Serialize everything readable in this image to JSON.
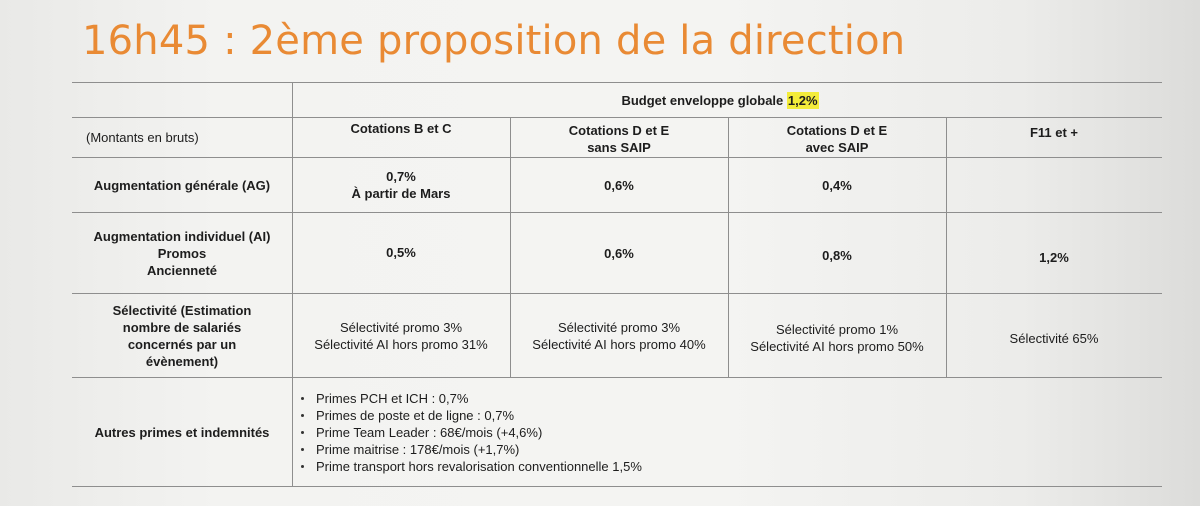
{
  "title": "16h45 : 2ème proposition de la direction",
  "budget": {
    "label": "Budget enveloppe globale",
    "value": "1,2%"
  },
  "header": {
    "montants": "(Montants en bruts)",
    "columns": [
      {
        "line1": "Cotations B et C",
        "line2": ""
      },
      {
        "line1": "Cotations D et E",
        "line2": "sans SAIP"
      },
      {
        "line1": "Cotations D et E",
        "line2": "avec SAIP"
      },
      {
        "line1": "F11 et +",
        "line2": ""
      }
    ]
  },
  "rows": {
    "ag": {
      "label": "Augmentation générale (AG)",
      "values": [
        {
          "line1": "0,7%",
          "line2": "À partir de Mars"
        },
        {
          "line1": "0,6%",
          "line2": ""
        },
        {
          "line1": "0,4%",
          "line2": ""
        },
        {
          "line1": "",
          "line2": ""
        }
      ]
    },
    "ai": {
      "label_lines": [
        "Augmentation individuel (AI)",
        "Promos",
        "Ancienneté"
      ],
      "values": [
        "0,5%",
        "0,6%",
        "0,8%",
        "1,2%"
      ]
    },
    "selectivite": {
      "label_lines": [
        "Sélectivité (Estimation",
        "nombre de salariés",
        "concernés par un",
        "évènement)"
      ],
      "values": [
        {
          "line1": "Sélectivité promo 3%",
          "line2": "Sélectivité AI hors promo 31%"
        },
        {
          "line1": "Sélectivité promo 3%",
          "line2": "Sélectivité AI hors promo 40%"
        },
        {
          "line1": "Sélectivité promo 1%",
          "line2": "Sélectivité AI hors promo 50%"
        },
        {
          "line1": "Sélectivité 65%",
          "line2": ""
        }
      ]
    },
    "primes": {
      "label": "Autres primes et indemnités",
      "items": [
        "Primes PCH et ICH : 0,7%",
        "Primes de poste et de ligne : 0,7%",
        "Prime Team Leader : 68€/mois (+4,6%)",
        "Prime maitrise : 178€/mois (+1,7%)",
        "Prime transport hors revalorisation conventionnelle 1,5%"
      ]
    }
  }
}
